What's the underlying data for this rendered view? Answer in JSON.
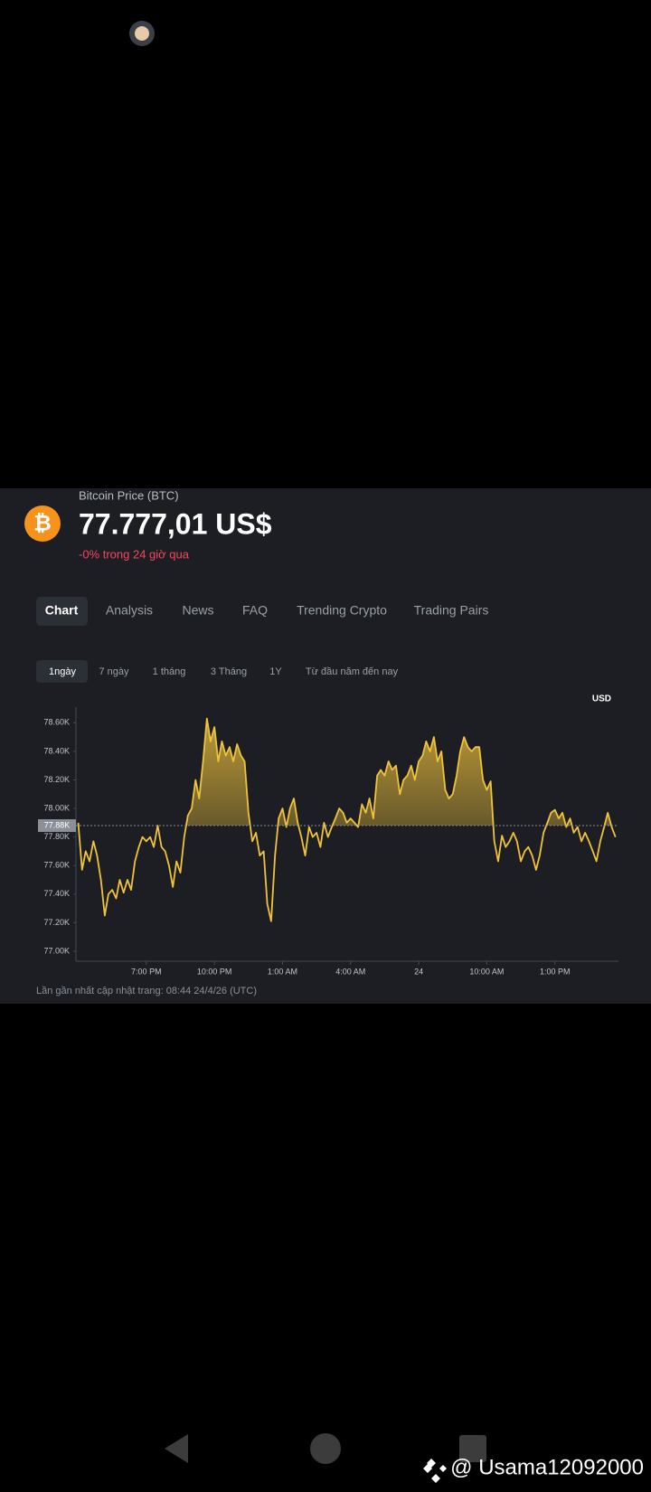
{
  "header": {
    "icon": "₿",
    "name": "Bitcoin Price (BTC)",
    "price": "77.777,01 US$",
    "change": "-0% trong 24 giờ qua"
  },
  "tabs": {
    "items": [
      "Chart",
      "Analysis",
      "News",
      "FAQ",
      "Trending Crypto",
      "Trading Pairs"
    ],
    "selected": 0
  },
  "ranges": {
    "items": [
      "1ngày",
      "7 ngày",
      "1 tháng",
      "3 Tháng",
      "1Y",
      "Từ đầu năm đến nay"
    ],
    "selected": 0
  },
  "chart_data": {
    "type": "line",
    "unit_label": "USD",
    "x": [
      16,
      16.17,
      16.33,
      16.5,
      16.67,
      16.83,
      17,
      17.17,
      17.33,
      17.5,
      17.67,
      17.83,
      18,
      18.17,
      18.33,
      18.5,
      18.67,
      18.83,
      19,
      19.17,
      19.33,
      19.5,
      19.67,
      19.83,
      20,
      20.17,
      20.33,
      20.5,
      20.67,
      20.83,
      21,
      21.17,
      21.33,
      21.5,
      21.67,
      21.83,
      22,
      22.17,
      22.33,
      22.5,
      22.67,
      22.83,
      23,
      23.17,
      23.33,
      23.5,
      23.67,
      23.83,
      24,
      24.17,
      24.33,
      24.5,
      24.67,
      24.83,
      25,
      25.17,
      25.33,
      25.5,
      25.67,
      25.83,
      26,
      26.17,
      26.33,
      26.5,
      26.67,
      26.83,
      27,
      27.17,
      27.33,
      27.5,
      27.67,
      27.83,
      28,
      28.17,
      28.33,
      28.5,
      28.67,
      28.83,
      29,
      29.17,
      29.33,
      29.5,
      29.67,
      29.83,
      30,
      30.17,
      30.33,
      30.5,
      30.67,
      30.83,
      31,
      31.17,
      31.33,
      31.5,
      31.67,
      31.83,
      32,
      32.17,
      32.33,
      32.5,
      32.67,
      32.83,
      33,
      33.17,
      33.33,
      33.5,
      33.67,
      33.83,
      34,
      34.17,
      34.33,
      34.5,
      34.67,
      34.83,
      35,
      35.17,
      35.33,
      35.5,
      35.67,
      35.83,
      36,
      36.17,
      36.33,
      36.5,
      36.67,
      36.83,
      37,
      37.17,
      37.33,
      37.5,
      37.67,
      37.83,
      38,
      38.17,
      38.33,
      38.5,
      38.67,
      38.83,
      39,
      39.17,
      39.33,
      39.5,
      39.67
    ],
    "series": [
      {
        "color": "#f0c33c",
        "values": [
          77.9,
          77.57,
          77.7,
          77.63,
          77.77,
          77.67,
          77.5,
          77.25,
          77.4,
          77.43,
          77.37,
          77.5,
          77.41,
          77.5,
          77.43,
          77.63,
          77.73,
          77.8,
          77.77,
          77.8,
          77.73,
          77.88,
          77.73,
          77.7,
          77.6,
          77.45,
          77.63,
          77.55,
          77.8,
          77.95,
          78.0,
          78.2,
          78.07,
          78.33,
          78.63,
          78.47,
          78.57,
          78.33,
          78.47,
          78.37,
          78.43,
          78.33,
          78.45,
          78.37,
          78.33,
          77.97,
          77.77,
          77.83,
          77.67,
          77.7,
          77.33,
          77.21,
          77.67,
          77.93,
          78.0,
          77.87,
          78.0,
          78.07,
          77.9,
          77.8,
          77.67,
          77.87,
          77.8,
          77.83,
          77.73,
          77.9,
          77.8,
          77.87,
          77.93,
          78.0,
          77.97,
          77.9,
          77.93,
          77.9,
          77.87,
          78.03,
          77.97,
          78.07,
          77.93,
          78.23,
          78.27,
          78.23,
          78.33,
          78.27,
          78.3,
          78.1,
          78.2,
          78.23,
          78.3,
          78.2,
          78.33,
          78.37,
          78.47,
          78.4,
          78.5,
          78.33,
          78.4,
          78.13,
          78.07,
          78.1,
          78.23,
          78.4,
          78.5,
          78.43,
          78.4,
          78.43,
          78.43,
          78.2,
          78.13,
          78.19,
          77.77,
          77.63,
          77.81,
          77.73,
          77.77,
          77.83,
          77.77,
          77.63,
          77.7,
          77.73,
          77.67,
          77.57,
          77.67,
          77.83,
          77.9,
          77.97,
          77.99,
          77.93,
          77.97,
          77.87,
          77.93,
          77.83,
          77.87,
          77.77,
          77.83,
          77.77,
          77.7,
          77.63,
          77.77,
          77.87,
          77.97,
          77.87,
          77.8
        ]
      }
    ],
    "reference": {
      "value": 77.88,
      "label": "77.88K"
    },
    "xlim": [
      15.9,
      39.8
    ],
    "xticks": [
      {
        "value": 19,
        "label": "7:00 PM"
      },
      {
        "value": 22,
        "label": "10:00 PM"
      },
      {
        "value": 25,
        "label": "1:00 AM"
      },
      {
        "value": 28,
        "label": "4:00 AM"
      },
      {
        "value": 31,
        "label": "24"
      },
      {
        "value": 34,
        "label": "10:00 AM"
      },
      {
        "value": 37,
        "label": "1:00 PM"
      }
    ],
    "ylim": [
      76.93,
      78.71
    ],
    "yticks": [
      {
        "value": 77.0,
        "label": "77.00K"
      },
      {
        "value": 77.2,
        "label": "77.20K"
      },
      {
        "value": 77.4,
        "label": "77.40K"
      },
      {
        "value": 77.6,
        "label": "77.60K"
      },
      {
        "value": 77.8,
        "label": "77.80K"
      },
      {
        "value": 78.0,
        "label": "78.00K"
      },
      {
        "value": 78.2,
        "label": "78.20K"
      },
      {
        "value": 78.4,
        "label": "78.40K"
      },
      {
        "value": 78.6,
        "label": "78.60K"
      }
    ],
    "grid": false
  },
  "footer": {
    "updated": "Lần gần nhất cập nhật trang: 08:44 24/4/26 (UTC)"
  },
  "watermark": "@ Usama12092000"
}
